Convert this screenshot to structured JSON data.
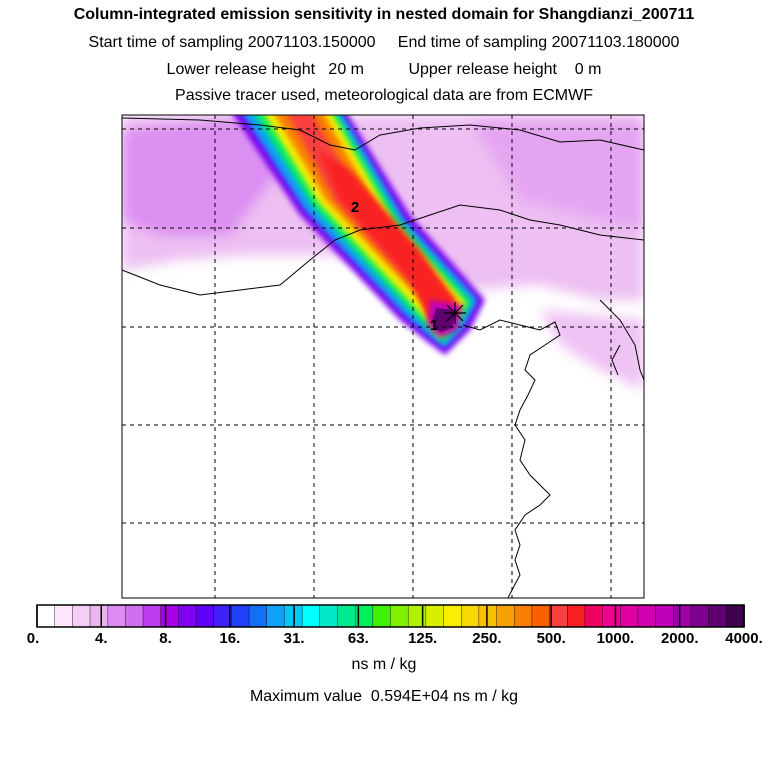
{
  "header": {
    "title": "Column-integrated emission sensitivity in nested domain for Shangdianzi_200711",
    "sampling": "Start time of sampling 20071103.150000     End time of sampling 20071103.180000",
    "heights": "Lower release height   20 m          Upper release height    0 m",
    "note": "Passive tracer used, meteorological data are from ECMWF"
  },
  "map": {
    "markers": [
      "1",
      "2"
    ],
    "station_marker": "star-icon"
  },
  "colorbar": {
    "tick_labels": [
      "0.",
      "4.",
      "8.",
      "16.",
      "31.",
      "63.",
      "125.",
      "250.",
      "500.",
      "1000.",
      "2000.",
      "4000."
    ],
    "colors": [
      "#ffffff",
      "#fbe6fb",
      "#f4cef4",
      "#eab4f0",
      "#dc8cf0",
      "#d070f0",
      "#bc3cf0",
      "#a800e8",
      "#8000f0",
      "#6000f8",
      "#4020f8",
      "#2040f8",
      "#1070f8",
      "#10a0f8",
      "#00c8f8",
      "#00ffff",
      "#00e8c8",
      "#00e890",
      "#00f060",
      "#40f000",
      "#80f000",
      "#b0f000",
      "#d8f000",
      "#f8f000",
      "#f8d800",
      "#f8c000",
      "#f8a000",
      "#f88000",
      "#f86000",
      "#f84040",
      "#f82020",
      "#f00060",
      "#f00090",
      "#e000a0",
      "#d000b0",
      "#c000b8",
      "#a000a8",
      "#800090",
      "#600070",
      "#400050"
    ],
    "unit": "ns m / kg"
  },
  "footer": {
    "max_value": "Maximum value  0.594E+04 ns m / kg"
  }
}
